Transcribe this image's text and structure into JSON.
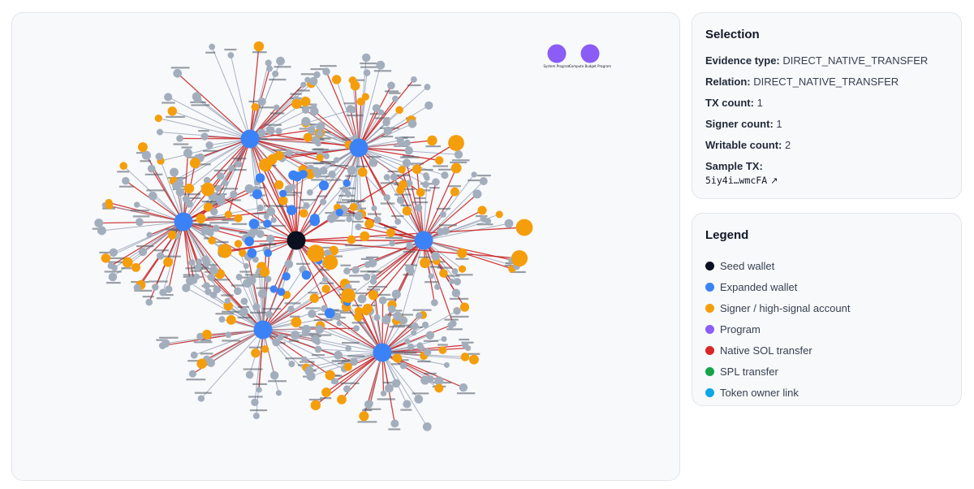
{
  "selection": {
    "title": "Selection",
    "fields": [
      {
        "key": "Evidence type:",
        "value": "DIRECT_NATIVE_TRANSFER"
      },
      {
        "key": "Relation:",
        "value": "DIRECT_NATIVE_TRANSFER"
      },
      {
        "key": "TX count:",
        "value": "1"
      },
      {
        "key": "Signer count:",
        "value": "1"
      },
      {
        "key": "Writable count:",
        "value": "2"
      }
    ],
    "sample_tx_label": "Sample TX:",
    "sample_tx_value": "5iy4i…wmcFA",
    "sample_tx_icon": "external-link-icon"
  },
  "legend": {
    "title": "Legend",
    "items": [
      {
        "label": "Seed wallet",
        "color": "#0b1020"
      },
      {
        "label": "Expanded wallet",
        "color": "#3b82f6"
      },
      {
        "label": "Signer / high-signal account",
        "color": "#f59e0b"
      },
      {
        "label": "Program",
        "color": "#8b5cf6"
      },
      {
        "label": "Native SOL transfer",
        "color": "#dc2626"
      },
      {
        "label": "SPL transfer",
        "color": "#16a34a"
      },
      {
        "label": "Token owner link",
        "color": "#0ea5e9"
      }
    ]
  },
  "graph": {
    "programs": [
      {
        "label": "System Program"
      },
      {
        "label": "Compute Budget Program"
      }
    ],
    "colors": {
      "seed": "#0b1020",
      "expanded": "#3b82f6",
      "signer": "#f59e0b",
      "program": "#8b5cf6",
      "account": "#a3aebd",
      "native_edge": "#c81e1e",
      "link_edge": "#9aa6b8"
    }
  }
}
